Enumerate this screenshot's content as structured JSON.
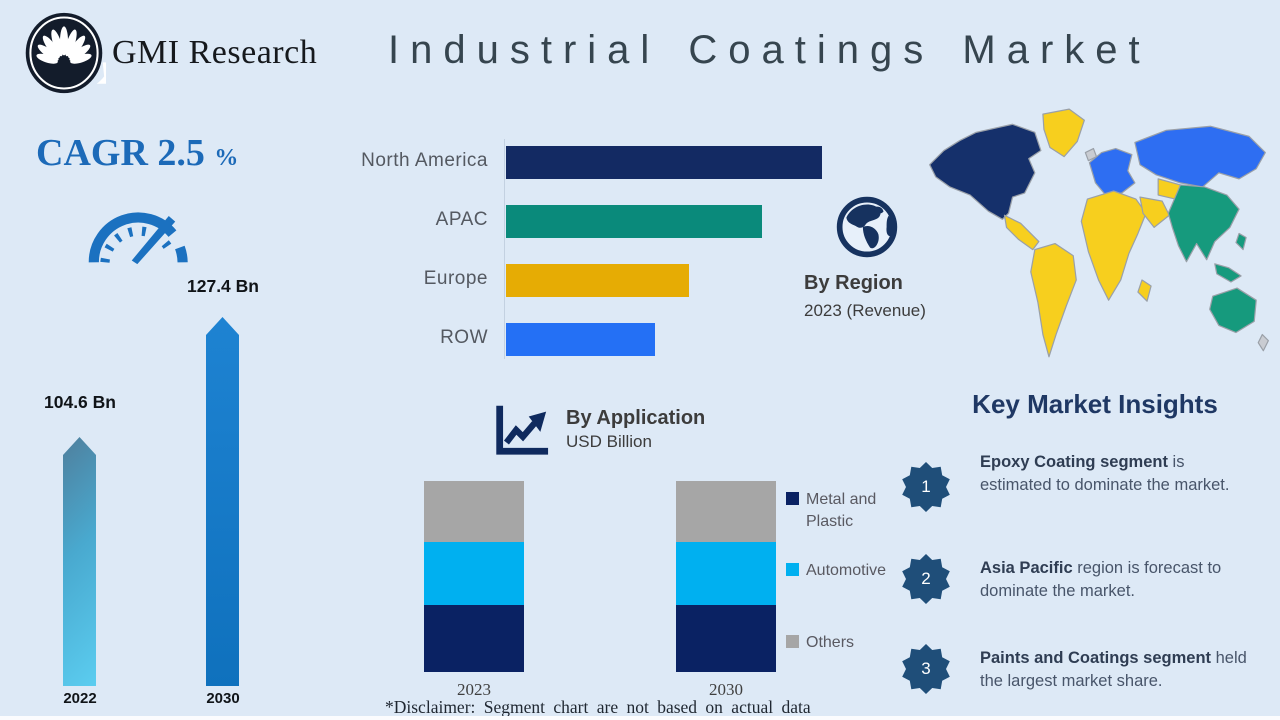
{
  "header": {
    "brand": "GMI Research",
    "title": "Industrial Coatings Market"
  },
  "cagr": {
    "label": "CAGR",
    "value": "2.5",
    "percent_sign": "%"
  },
  "region_section": {
    "title": "By Region",
    "subtitle": "2023 (Revenue)"
  },
  "application_section": {
    "title": "By Application",
    "subtitle": "USD Billion"
  },
  "market_insights": {
    "title": "Key Market Insights",
    "items": [
      {
        "number": "1",
        "bold": "Epoxy Coating segment",
        "rest": " is estimated to dominate the market."
      },
      {
        "number": "2",
        "bold": "Asia Pacific",
        "rest": " region is forecast to dominate the market."
      },
      {
        "number": "3",
        "bold": "Paints and Coatings segment",
        "rest": " held the largest market share."
      }
    ]
  },
  "disclaimer": "*Disclaimer:  Segment chart are not based on actual data",
  "colors": {
    "background": "#dde9f6",
    "accent_blue": "#1c6ab8",
    "title_gray": "#36454f",
    "insights_navy": "#1f3864",
    "badge_blue": "#1f4e79",
    "bar_2022_gradient": [
      "#4f7f9d",
      "#5bcdf0"
    ],
    "bar_2030": "#1379c7",
    "map_north_america": "#15306b",
    "map_europe_russia": "#2e6ef2",
    "map_africa_americas": "#f7cf1e",
    "map_apac": "#169a7d"
  },
  "chart_data": [
    {
      "type": "bar",
      "title": "Market size (USD Billion)",
      "categories": [
        "2022",
        "2030"
      ],
      "values": [
        104.6,
        127.4
      ],
      "value_labels": [
        "104.6 Bn",
        "127.4 Bn"
      ],
      "cagr_percent": 2.5
    },
    {
      "type": "bar",
      "orientation": "horizontal",
      "title": "By Region",
      "subtitle": "2023 (Revenue)",
      "categories": [
        "North America",
        "APAC",
        "Europe",
        "ROW"
      ],
      "values": [
        100,
        81,
        58,
        47
      ],
      "values_note": "relative lengths, no axis scale shown",
      "colors": [
        "#132a63",
        "#0a8a7b",
        "#e6ac04",
        "#2470f5"
      ]
    },
    {
      "type": "stacked-bar",
      "title": "By Application",
      "ylabel": "USD Billion",
      "categories": [
        "2023",
        "2030"
      ],
      "series": [
        {
          "name": "Metal and Plastic",
          "color": "#0a2263",
          "values": [
            35,
            35
          ]
        },
        {
          "name": "Automotive",
          "color": "#00b0f0",
          "values": [
            33,
            33
          ]
        },
        {
          "name": "Others",
          "color": "#a6a6a6",
          "values": [
            32,
            32
          ]
        }
      ],
      "legend_position": "right",
      "note": "segment sizes illustrative per disclaimer"
    }
  ]
}
